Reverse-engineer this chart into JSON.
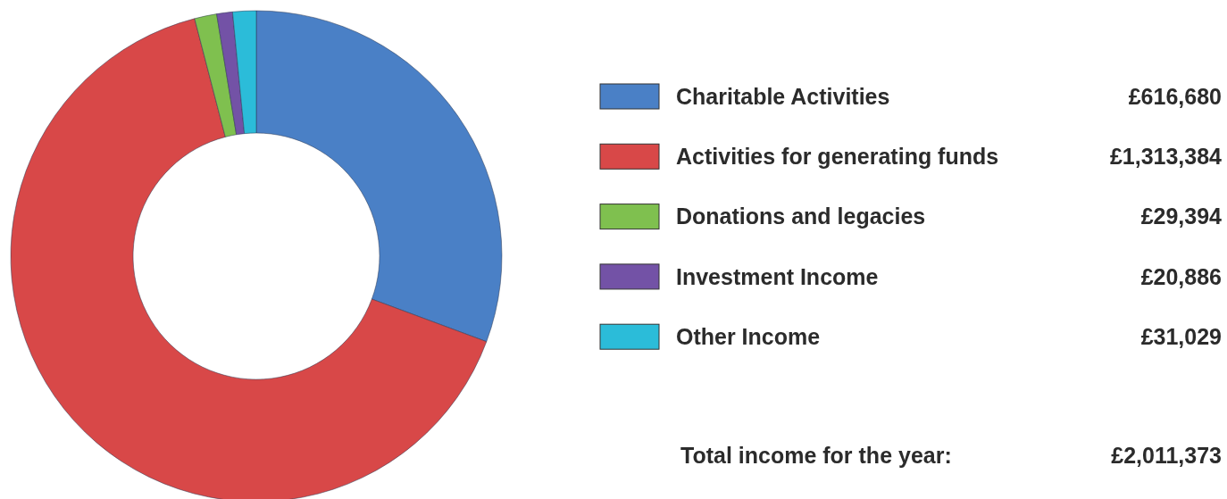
{
  "chart_data": {
    "type": "donut",
    "categories": [
      "Charitable Activities",
      "Activities for generating funds",
      "Donations and legacies",
      "Investment Income",
      "Other Income"
    ],
    "values": [
      616680,
      1313384,
      29394,
      20886,
      31029
    ],
    "value_labels": [
      "£616,680",
      "£1,313,384",
      "£29,394",
      "£20,886",
      "£31,029"
    ],
    "colors": [
      "#4a80c6",
      "#d84848",
      "#7fc04f",
      "#7352a6",
      "#2bbcd9"
    ],
    "legend": "right",
    "annotations": [
      "Total income for the year:",
      "£2,011,373"
    ]
  }
}
